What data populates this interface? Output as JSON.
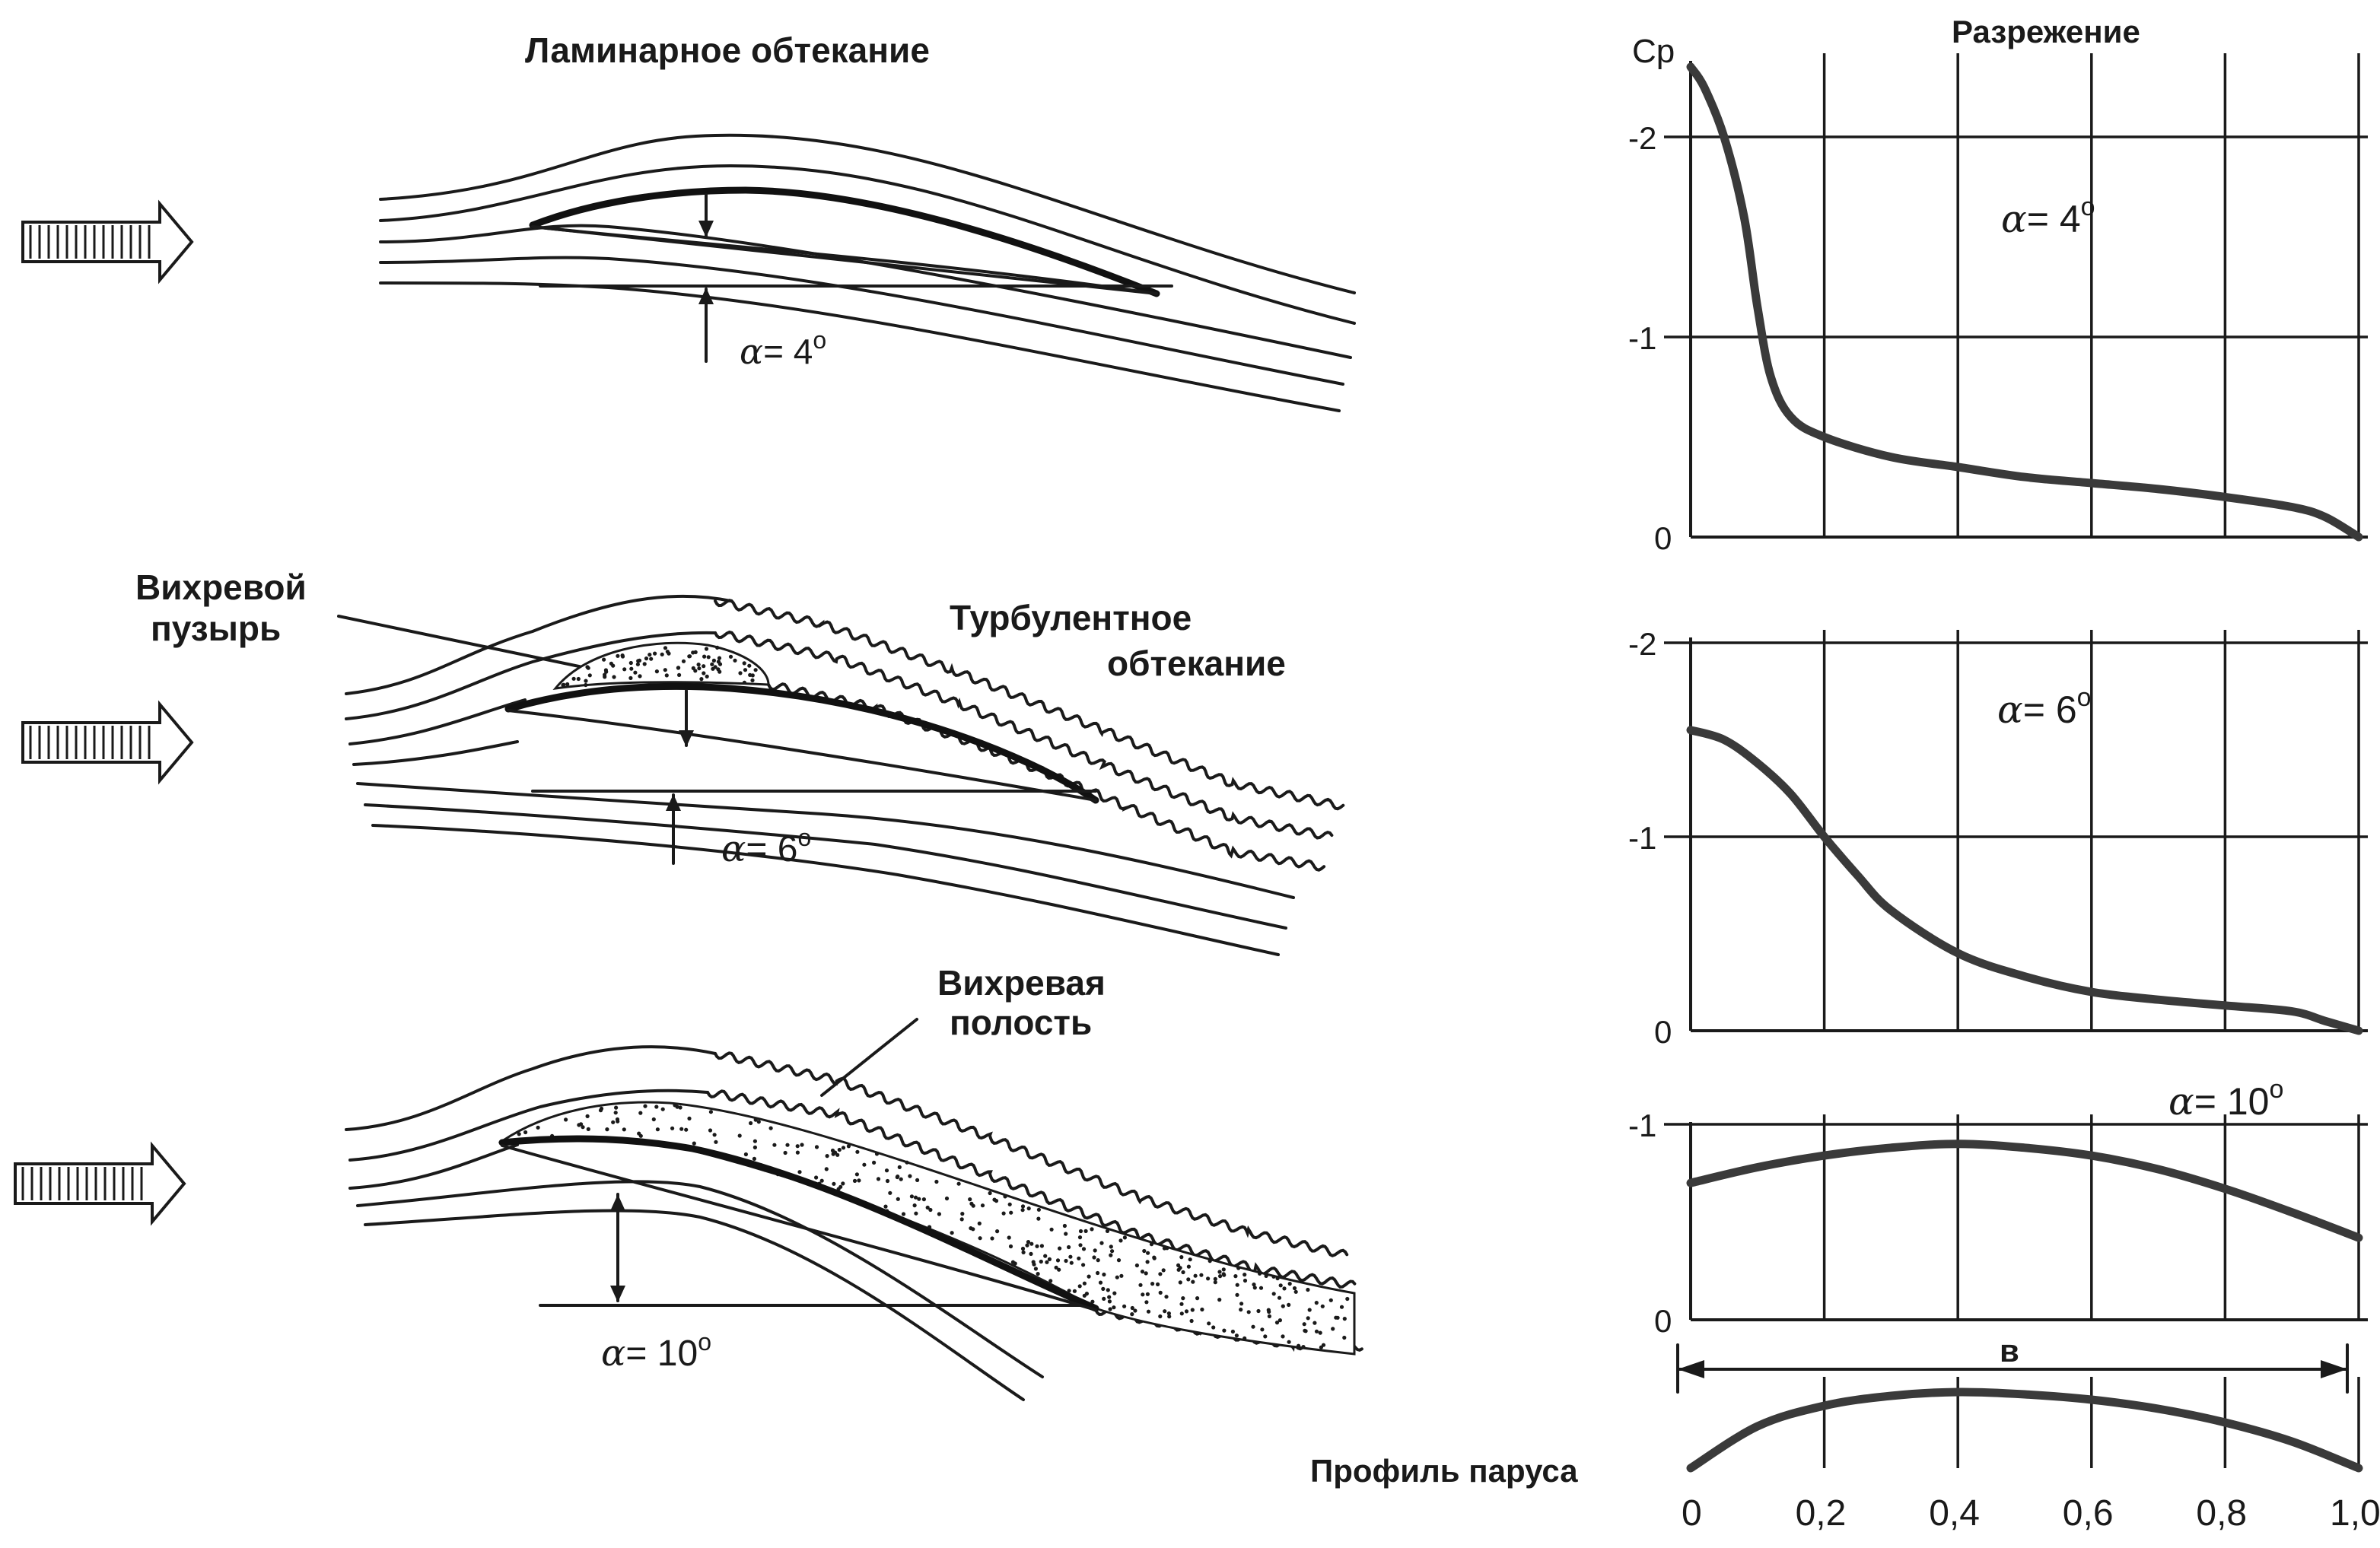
{
  "titles": {
    "laminar": "Ламинарное обтекание",
    "turbulent_1": "Турбулентное",
    "turbulent_2": "обтекание",
    "bubble_1": "Вихревой",
    "bubble_2": "пузырь",
    "cavity_1": "Вихревая",
    "cavity_2": "полость",
    "suction": "Разрежение",
    "profile": "Профиль паруса"
  },
  "angles": {
    "alpha_symbol": "α",
    "a4": "= 4",
    "a6": "= 6",
    "a10": "= 10",
    "deg": "o"
  },
  "chart_data": [
    {
      "type": "line",
      "ylabel": "Cp",
      "annotation": "α = 4°",
      "yticks": [
        "-2",
        "-1",
        "0"
      ],
      "ylim": [
        0,
        -2.3
      ],
      "xlim": [
        0,
        1.0
      ],
      "grid": true,
      "x": [
        0.0,
        0.02,
        0.05,
        0.08,
        0.1,
        0.12,
        0.15,
        0.2,
        0.3,
        0.4,
        0.5,
        0.6,
        0.7,
        0.8,
        0.9,
        0.95,
        1.0
      ],
      "values": [
        -2.35,
        -2.25,
        -2.0,
        -1.6,
        -1.15,
        -0.8,
        -0.6,
        -0.5,
        -0.4,
        -0.35,
        -0.3,
        -0.27,
        -0.24,
        -0.2,
        -0.15,
        -0.1,
        0.0
      ]
    },
    {
      "type": "line",
      "annotation": "α = 6°",
      "yticks": [
        "-2",
        "-1",
        "0"
      ],
      "ylim": [
        0,
        -2.0
      ],
      "xlim": [
        0,
        1.0
      ],
      "grid": true,
      "x": [
        0.0,
        0.05,
        0.1,
        0.15,
        0.2,
        0.25,
        0.3,
        0.4,
        0.5,
        0.6,
        0.7,
        0.8,
        0.9,
        0.95,
        1.0
      ],
      "values": [
        -1.55,
        -1.5,
        -1.38,
        -1.22,
        -1.0,
        -0.8,
        -0.62,
        -0.4,
        -0.28,
        -0.2,
        -0.16,
        -0.13,
        -0.1,
        -0.05,
        0.0
      ]
    },
    {
      "type": "line",
      "annotation": "α = 10°",
      "yticks": [
        "-1",
        "0"
      ],
      "ylim": [
        0,
        -1.0
      ],
      "xlim": [
        0,
        1.0
      ],
      "grid": true,
      "x": [
        0.0,
        0.1,
        0.2,
        0.3,
        0.4,
        0.5,
        0.6,
        0.7,
        0.8,
        0.9,
        1.0
      ],
      "values": [
        -0.7,
        -0.78,
        -0.84,
        -0.88,
        -0.9,
        -0.88,
        -0.84,
        -0.77,
        -0.67,
        -0.55,
        -0.42
      ]
    }
  ],
  "profile": {
    "chord_label": "в",
    "xticks": [
      "0",
      "0,2",
      "0,4",
      "0,6",
      "0,8",
      "1,0"
    ],
    "x": [
      0.0,
      0.1,
      0.2,
      0.3,
      0.4,
      0.5,
      0.6,
      0.7,
      0.8,
      0.9,
      1.0
    ],
    "camber": [
      0.0,
      0.55,
      0.82,
      0.95,
      1.0,
      0.97,
      0.9,
      0.78,
      0.6,
      0.35,
      0.0
    ]
  }
}
